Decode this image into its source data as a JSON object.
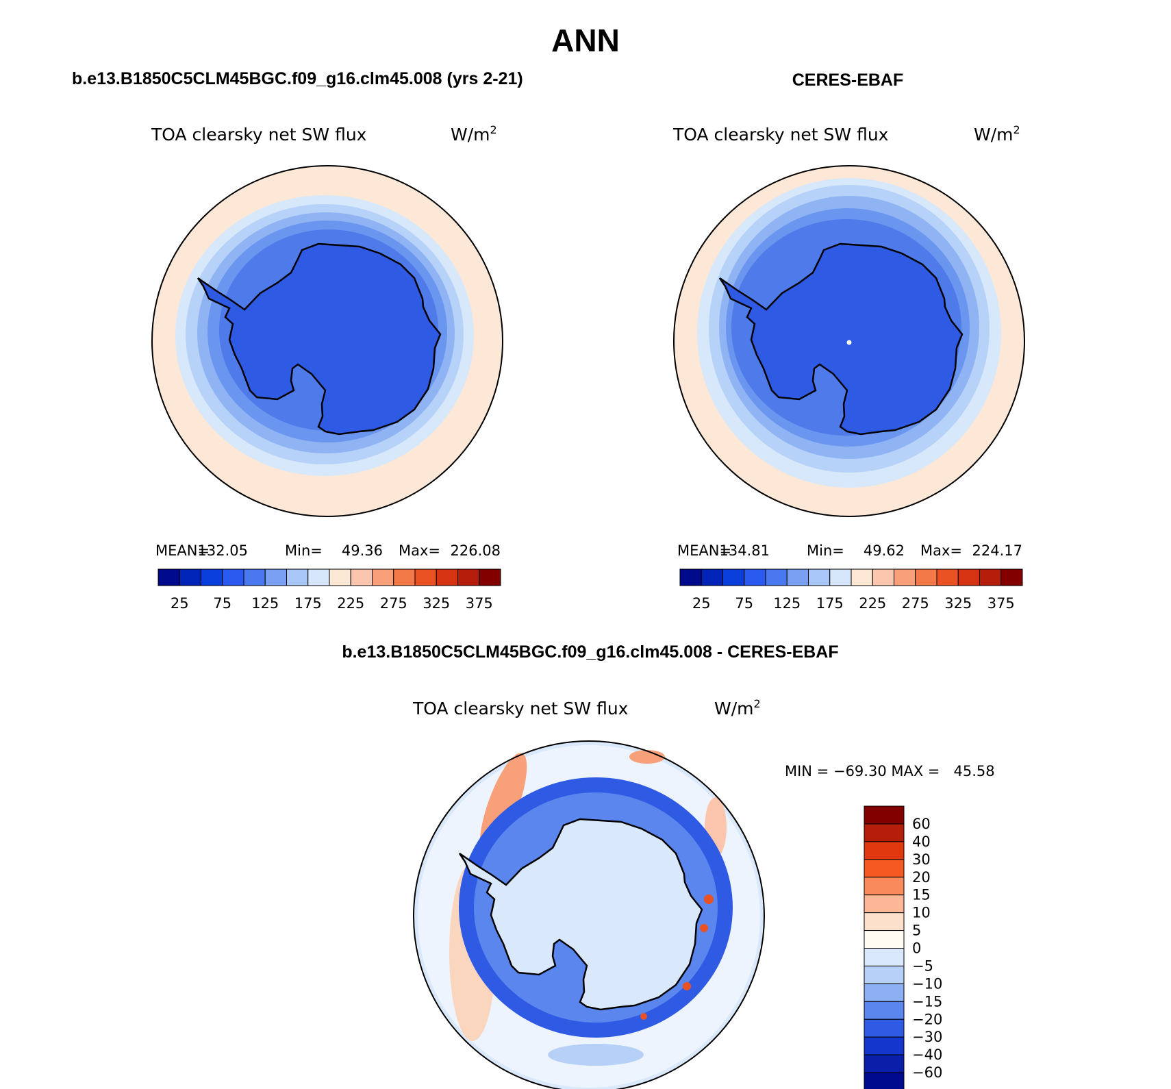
{
  "page": {
    "title": "ANN"
  },
  "panels": [
    {
      "id": "model",
      "case_title": "b.e13.B1850C5CLM45BGC.f09_g16.clm45.008 (yrs 2-21)",
      "variable": "TOA clearsky net SW flux",
      "units": "W/m",
      "units_sup": "2",
      "stats": {
        "mean_label": "MEAN=",
        "mean": "132.05",
        "min_label": "Min=",
        "min": "49.36",
        "max_label": "Max=",
        "max": "226.08"
      },
      "map": {
        "projection": "south-polar-stereographic",
        "region": "Antarctica / Southern Ocean",
        "field_levels": [
          "#fde7d6",
          "#d7e8fb",
          "#b7d2f8",
          "#8fb3f3",
          "#6b96ef",
          "#4f7aea",
          "#2f5ae4"
        ]
      },
      "colorbar": {
        "tick_labels": [
          "25",
          "75",
          "125",
          "175",
          "225",
          "275",
          "325",
          "375"
        ],
        "colors": [
          "#000a8c",
          "#0024b8",
          "#0a3fdc",
          "#2a5af0",
          "#4a78ee",
          "#7aa0f2",
          "#a8c6f7",
          "#d6e7fb",
          "#fde8d6",
          "#fbc6ad",
          "#f8a07a",
          "#f37a48",
          "#ea5223",
          "#d63313",
          "#b41e0b",
          "#820000"
        ]
      }
    },
    {
      "id": "obs",
      "case_title": "CERES-EBAF",
      "variable": "TOA clearsky net SW flux",
      "units": "W/m",
      "units_sup": "2",
      "stats": {
        "mean_label": "MEAN=",
        "mean": "134.81",
        "min_label": "Min=",
        "min": "49.62",
        "max_label": "Max=",
        "max": "224.17"
      },
      "map": {
        "projection": "south-polar-stereographic",
        "region": "Antarctica / Southern Ocean",
        "field_levels": [
          "#fde7d6",
          "#d7e8fb",
          "#b7d2f8",
          "#8fb3f3",
          "#6b96ef",
          "#4f7aea",
          "#2f5ae4"
        ]
      },
      "colorbar": {
        "tick_labels": [
          "25",
          "75",
          "125",
          "175",
          "225",
          "275",
          "325",
          "375"
        ],
        "colors": [
          "#000a8c",
          "#0024b8",
          "#0a3fdc",
          "#2a5af0",
          "#4a78ee",
          "#7aa0f2",
          "#a8c6f7",
          "#d6e7fb",
          "#fde8d6",
          "#fbc6ad",
          "#f8a07a",
          "#f37a48",
          "#ea5223",
          "#d63313",
          "#b41e0b",
          "#820000"
        ]
      }
    },
    {
      "id": "diff",
      "case_title": "b.e13.B1850C5CLM45BGC.f09_g16.clm45.008 - CERES-EBAF",
      "variable": "TOA clearsky net SW flux",
      "units": "W/m",
      "units_sup": "2",
      "stats": {
        "minmax": "MIN = −69.30 MAX =   45.58"
      },
      "map": {
        "projection": "south-polar-stereographic",
        "region": "Antarctica / Southern Ocean"
      },
      "colorbar": {
        "tick_labels": [
          "60",
          "40",
          "30",
          "20",
          "15",
          "10",
          "5",
          "0",
          "−5",
          "−10",
          "−15",
          "−20",
          "−30",
          "−40",
          "−60"
        ],
        "colors": [
          "#820000",
          "#b41e0b",
          "#e0380f",
          "#f45a22",
          "#f88a5c",
          "#fbb796",
          "#fde0cc",
          "#fffbf2",
          "#d9e9fb",
          "#b6d0f8",
          "#8cb0f3",
          "#5b86ee",
          "#2f5ae4",
          "#1536cc",
          "#0a1ea8",
          "#000a8c"
        ]
      }
    }
  ]
}
